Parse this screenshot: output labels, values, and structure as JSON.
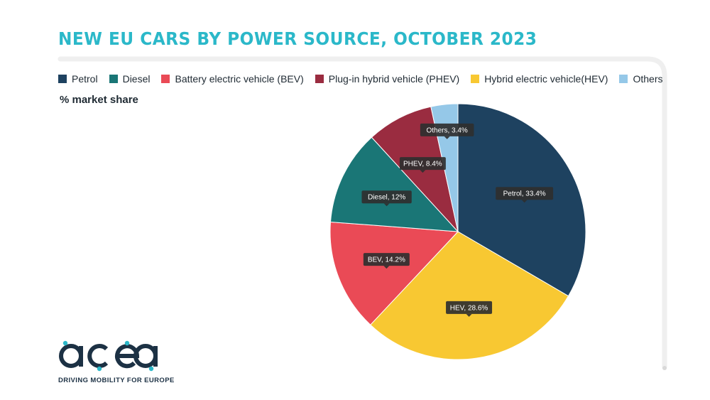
{
  "title": "NEW EU CARS BY POWER SOURCE, OCTOBER 2023",
  "subtitle": "% market share",
  "legend": [
    {
      "label": "Petrol",
      "color": "#1e4260"
    },
    {
      "label": "Diesel",
      "color": "#1a7676"
    },
    {
      "label": "Battery electric vehicle (BEV)",
      "color": "#ea4a56"
    },
    {
      "label": "Plug-in hybrid vehicle (PHEV)",
      "color": "#9a2c40"
    },
    {
      "label": "Hybrid electric vehicle(HEV)",
      "color": "#f8c832"
    },
    {
      "label": "Others",
      "color": "#95c8e8"
    }
  ],
  "chart_data": {
    "type": "pie",
    "title": "NEW EU CARS BY POWER SOURCE, OCTOBER 2023",
    "subtitle": "% market share",
    "legend_position": "top-left",
    "slices": [
      {
        "name": "Petrol",
        "value": 33.4,
        "label": "Petrol, 33.4%",
        "color": "#1e4260"
      },
      {
        "name": "HEV",
        "value": 28.6,
        "label": "HEV, 28.6%",
        "color": "#f8c832"
      },
      {
        "name": "BEV",
        "value": 14.2,
        "label": "BEV, 14.2%",
        "color": "#ea4a56"
      },
      {
        "name": "Diesel",
        "value": 12,
        "label": "Diesel, 12%",
        "color": "#1a7676"
      },
      {
        "name": "PHEV",
        "value": 8.4,
        "label": "PHEV, 8.4%",
        "color": "#9a2c40"
      },
      {
        "name": "Others",
        "value": 3.4,
        "label": "Others, 3.4%",
        "color": "#95c8e8"
      }
    ]
  },
  "logo": {
    "name": "acea",
    "tagline": "DRIVING MOBILITY FOR EUROPE"
  }
}
